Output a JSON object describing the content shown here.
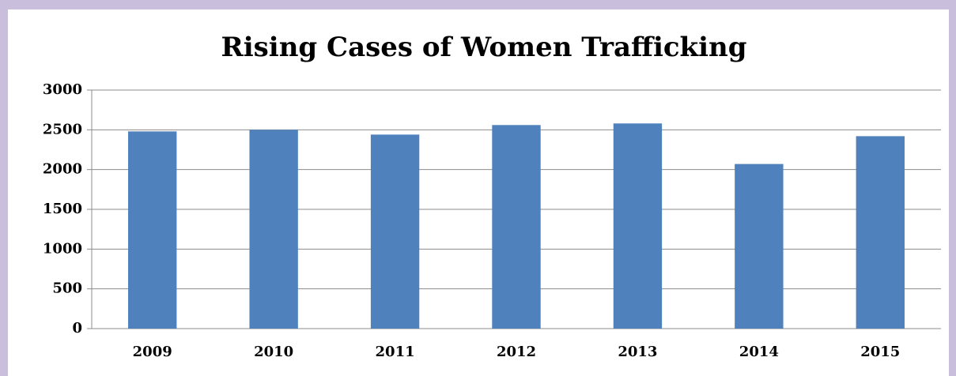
{
  "chart_data": {
    "type": "bar",
    "title": "Rising Cases of Women Trafficking",
    "categories": [
      "2009",
      "2010",
      "2011",
      "2012",
      "2013",
      "2014",
      "2015"
    ],
    "values": [
      2480,
      2500,
      2440,
      2560,
      2580,
      2070,
      2420
    ],
    "color": "#4f81bd",
    "ylim": [
      0,
      3000
    ],
    "yticks": [
      0,
      500,
      1000,
      1500,
      2000,
      2500,
      3000
    ],
    "grid": true
  }
}
